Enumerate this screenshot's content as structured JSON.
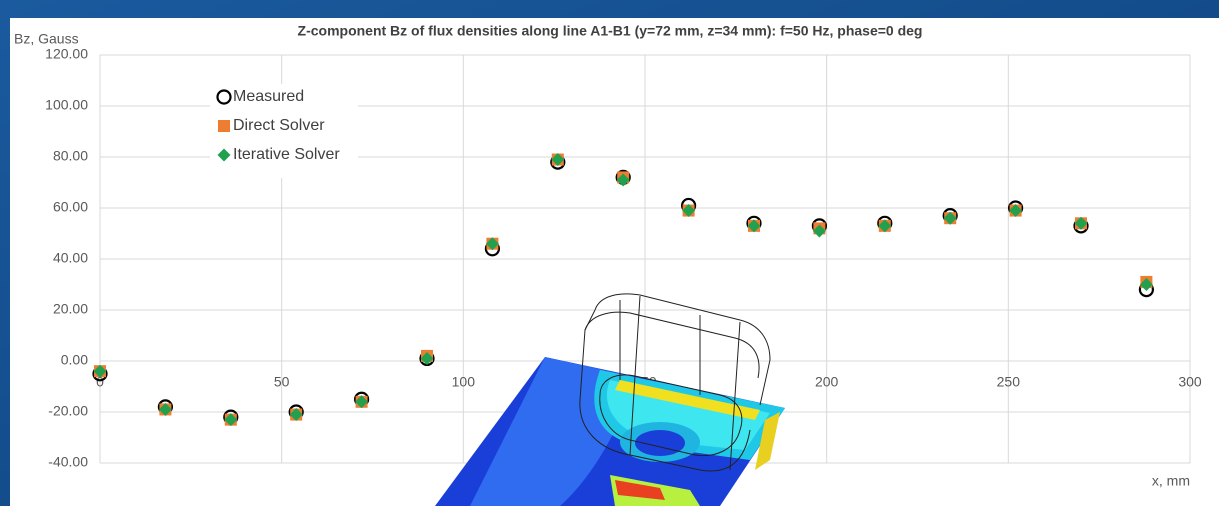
{
  "chart_data": {
    "type": "scatter",
    "title": "Z-component Bz of flux densities along line A1-B1 (y=72 mm, z=34 mm): f=50 Hz, phase=0 deg",
    "y_label": "Bz, Gauss",
    "x_label": "x, mm",
    "x": [
      0,
      18,
      36,
      54,
      72,
      90,
      108,
      126,
      144,
      162,
      180,
      198,
      216,
      234,
      252,
      270,
      288
    ],
    "series": [
      {
        "name": "Measured",
        "color": "#000000",
        "marker": "circle",
        "values": [
          -5,
          -18,
          -22,
          -20,
          -15,
          1,
          44,
          78,
          72,
          61,
          54,
          53,
          54,
          57,
          60,
          53,
          28
        ]
      },
      {
        "name": "Direct Solver",
        "color": "#ed7d31",
        "marker": "square",
        "values": [
          -4,
          -19,
          -23,
          -21,
          -16,
          2,
          46,
          79,
          72,
          59,
          53,
          52,
          53,
          56,
          59,
          54,
          31
        ]
      },
      {
        "name": "Iterative Solver",
        "color": "#23a04e",
        "marker": "diamond",
        "values": [
          -4,
          -19,
          -23,
          -21,
          -16,
          1,
          46,
          79,
          71,
          59,
          53,
          51,
          53,
          56,
          59,
          54,
          30
        ]
      }
    ],
    "xlim": [
      0,
      300
    ],
    "xticks": [
      0,
      50,
      100,
      150,
      200,
      250,
      300
    ],
    "ylim": [
      -40,
      120
    ],
    "yticks": [
      {
        "value": -40,
        "label": "-40.00"
      },
      {
        "value": -20,
        "label": "-20.00"
      },
      {
        "value": 0,
        "label": "0.00"
      },
      {
        "value": 20,
        "label": "20.00"
      },
      {
        "value": 40,
        "label": "40.00"
      },
      {
        "value": 60,
        "label": "60.00"
      },
      {
        "value": 80,
        "label": "80.00"
      },
      {
        "value": 100,
        "label": "100.00"
      },
      {
        "value": 120,
        "label": "120.00"
      }
    ],
    "grid": true
  }
}
